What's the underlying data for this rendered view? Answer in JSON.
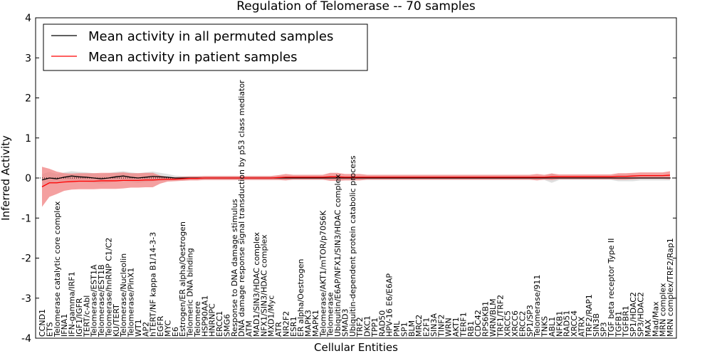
{
  "chart_data": {
    "type": "line",
    "title": "Regulation of Telomerase -- 70 samples",
    "xlabel": "Cellular Entities",
    "ylabel": "Inferred Activity",
    "ylim": [
      -4,
      4
    ],
    "yticks": [
      -4,
      -3,
      -2,
      -1,
      0,
      1,
      2,
      3,
      4
    ],
    "legend_position": "top-left",
    "colors": {
      "permuted_line": "#000000",
      "permuted_band": "#d9d9d9",
      "patient_line": "#ff0000",
      "patient_band": "#f08080"
    },
    "categories": [
      "CCND1",
      "ETS",
      "Telomerase catalytic core complex",
      "IFNA1",
      "IFN-gamma/IRF1",
      "IGF1/IGFR",
      "TERT/c-Abl",
      "Telomerase/EST1A",
      "Telomerase/EST1B",
      "Telomerase/hnRNP C1/C2",
      "KU/TERT",
      "Telomerase/Nucleolin",
      "Telomerase/PinX1",
      "WT1",
      "AP2",
      "hTERT/NF kappa B1/14-3-3",
      "EGFR",
      "MYC",
      "E6",
      "Estrogen/ER alpha/Oestrogen",
      "Telomeric DNA binding",
      "Telomere",
      "HSP90AA1",
      "HNRNPC",
      "ERCC1",
      "SMG6",
      "Response to DNA damage stimulus",
      "DNA damage response signal transduction by p53 class mediator",
      "ATM",
      "MAD1/SIN3/HDAC complex",
      "NFX1/SIN3/HDAC complex",
      "MXD1/Myc",
      "ATR",
      "NR2F2",
      "ESR1",
      "ER alpha/Oestrogen",
      "MAPK3",
      "MAPK1",
      "Telomerase/AKT1/mTOR/p70S6K",
      "Telomerase",
      "Ubiquitin/E6AP/NFX1/SIN3/HDAC complex",
      "SMAD3",
      "Ubiquitin-dependent protein catabolic process",
      "TRF2",
      "DKC1",
      "TPP1",
      "RAD50",
      "HPV-16 E6/E6AP",
      "PML",
      "SP1",
      "BLM",
      "MRC2",
      "E2F1",
      "SIN3A",
      "TINF2",
      "WRN",
      "AKT1",
      "TERF1",
      "RB1",
      "CDC42",
      "RPS6KB1",
      "WRN/BLM",
      "TRF1/TRF2",
      "XRCC5",
      "XRCC6",
      "ERCC2",
      "SP1/SP3",
      "Telomerase/911",
      "TNKS",
      "ABL1",
      "NFKB1",
      "RAD51",
      "XRCC4",
      "ATRX",
      "TRF2/RAP1",
      "SIN3B",
      "SP3",
      "TGF beta receptor Type II",
      "TGFB1",
      "TGFBR1",
      "SP1/HDAC2",
      "SP3/HDAC2",
      "MAX",
      "Mad/Max",
      "MRN complex",
      "MRN complex/TRF2/Rap1"
    ],
    "series": [
      {
        "name": "Mean activity in all permuted samples",
        "values": [
          -0.05,
          0.0,
          -0.02,
          0.02,
          0.05,
          0.03,
          0.02,
          0.0,
          -0.02,
          0.0,
          0.03,
          0.05,
          0.02,
          0.0,
          0.02,
          0.04,
          0.03,
          0.02,
          0.0,
          0.0,
          0.0,
          0.0,
          0.0,
          0.0,
          0.0,
          0.0,
          0.0,
          0.0,
          0.0,
          0.0,
          0.0,
          0.0,
          0.0,
          0.0,
          0.0,
          0.0,
          0.0,
          0.0,
          0.0,
          0.0,
          0.0,
          0.0,
          0.0,
          0.0,
          0.0,
          0.0,
          0.0,
          0.0,
          0.0,
          0.0,
          0.0,
          0.0,
          0.0,
          0.0,
          0.0,
          0.0,
          0.0,
          0.0,
          0.0,
          0.0,
          0.0,
          0.0,
          0.0,
          0.0,
          0.0,
          0.0,
          0.0,
          0.0,
          0.0,
          0.0,
          0.0,
          0.0,
          0.0,
          0.0,
          0.0,
          0.0,
          0.0,
          0.0,
          0.0,
          0.0,
          0.0,
          0.0,
          0.0,
          0.0,
          0.0,
          0.0
        ],
        "band": [
          0.15,
          0.15,
          0.12,
          0.12,
          0.12,
          0.12,
          0.12,
          0.12,
          0.12,
          0.12,
          0.12,
          0.12,
          0.12,
          0.12,
          0.12,
          0.12,
          0.1,
          0.08,
          0.06,
          0.05,
          0.05,
          0.05,
          0.05,
          0.05,
          0.05,
          0.05,
          0.05,
          0.05,
          0.05,
          0.05,
          0.05,
          0.05,
          0.05,
          0.05,
          0.05,
          0.05,
          0.05,
          0.05,
          0.05,
          0.05,
          0.05,
          0.05,
          0.05,
          0.05,
          0.05,
          0.05,
          0.05,
          0.05,
          0.05,
          0.05,
          0.05,
          0.05,
          0.05,
          0.05,
          0.05,
          0.05,
          0.05,
          0.05,
          0.05,
          0.05,
          0.05,
          0.05,
          0.05,
          0.05,
          0.05,
          0.05,
          0.05,
          0.05,
          0.05,
          0.12,
          0.05,
          0.05,
          0.05,
          0.05,
          0.05,
          0.05,
          0.05,
          0.05,
          0.08,
          0.08,
          0.08,
          0.06,
          0.06,
          0.06,
          0.06,
          0.06
        ]
      },
      {
        "name": "Mean activity in patient samples",
        "values": [
          -0.22,
          -0.12,
          -0.12,
          -0.1,
          -0.09,
          -0.08,
          -0.08,
          -0.08,
          -0.07,
          -0.07,
          -0.07,
          -0.06,
          -0.06,
          -0.06,
          -0.05,
          -0.05,
          -0.04,
          -0.03,
          -0.03,
          -0.02,
          -0.01,
          -0.01,
          0.0,
          0.0,
          0.0,
          0.0,
          0.0,
          0.0,
          0.0,
          0.0,
          0.0,
          0.0,
          0.01,
          0.02,
          0.02,
          0.02,
          0.02,
          0.02,
          0.02,
          0.03,
          0.03,
          0.02,
          0.02,
          0.02,
          0.02,
          0.02,
          0.02,
          0.02,
          0.02,
          0.02,
          0.02,
          0.02,
          0.02,
          0.02,
          0.02,
          0.02,
          0.02,
          0.02,
          0.02,
          0.02,
          0.02,
          0.02,
          0.02,
          0.02,
          0.02,
          0.02,
          0.02,
          0.02,
          0.02,
          0.03,
          0.03,
          0.03,
          0.03,
          0.03,
          0.03,
          0.03,
          0.03,
          0.03,
          0.04,
          0.04,
          0.05,
          0.06,
          0.06,
          0.06,
          0.06,
          0.07
        ],
        "band": [
          0.5,
          0.35,
          0.28,
          0.22,
          0.2,
          0.2,
          0.2,
          0.2,
          0.2,
          0.2,
          0.2,
          0.2,
          0.18,
          0.18,
          0.18,
          0.18,
          0.1,
          0.06,
          0.05,
          0.05,
          0.05,
          0.05,
          0.05,
          0.05,
          0.05,
          0.05,
          0.05,
          0.05,
          0.05,
          0.05,
          0.05,
          0.05,
          0.06,
          0.08,
          0.06,
          0.06,
          0.06,
          0.06,
          0.06,
          0.1,
          0.1,
          0.08,
          0.08,
          0.08,
          0.06,
          0.06,
          0.06,
          0.06,
          0.06,
          0.06,
          0.06,
          0.06,
          0.06,
          0.06,
          0.06,
          0.06,
          0.06,
          0.06,
          0.06,
          0.06,
          0.06,
          0.06,
          0.06,
          0.06,
          0.06,
          0.06,
          0.06,
          0.08,
          0.06,
          0.08,
          0.06,
          0.06,
          0.06,
          0.06,
          0.06,
          0.06,
          0.06,
          0.06,
          0.08,
          0.08,
          0.08,
          0.08,
          0.08,
          0.08,
          0.08,
          0.1
        ]
      }
    ]
  }
}
